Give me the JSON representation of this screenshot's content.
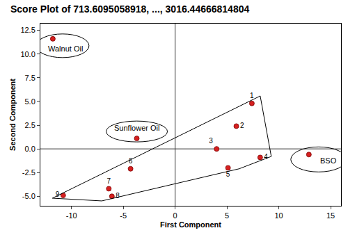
{
  "chart_data": {
    "type": "scatter",
    "title": "Score Plot of 713.6095058918, ..., 3016.44666814804",
    "x_label": "First Component",
    "y_label": "Second Component",
    "xlim": [
      -13,
      16
    ],
    "xticks": [
      -10,
      -5,
      0,
      5,
      10,
      15
    ],
    "ylim": [
      -6,
      13.2
    ],
    "yticks": [
      {
        "value": -5,
        "label": "-5.0"
      },
      -2.5,
      {
        "value": 0,
        "label": "0.0"
      },
      2.5,
      {
        "value": 5,
        "label": "5.0"
      },
      7.5,
      {
        "value": 10,
        "label": "10.0"
      },
      12.5
    ],
    "grid": false,
    "color": "#d62020",
    "marker": "circle",
    "ref_lines": [
      {
        "axis": "x",
        "value": 0
      },
      {
        "axis": "y",
        "value": 0
      }
    ],
    "samples": [
      {
        "label": "1",
        "x": 7.4,
        "y": 4.8
      },
      {
        "label": "2",
        "x": 5.9,
        "y": 2.4
      },
      {
        "label": "3",
        "x": 4.0,
        "y": 0.0
      },
      {
        "label": "4",
        "x": 8.2,
        "y": -0.9
      },
      {
        "label": "5",
        "x": 5.1,
        "y": -2.0
      },
      {
        "label": "6",
        "x": -4.3,
        "y": -2.1
      },
      {
        "label": "7",
        "x": -6.4,
        "y": -4.2
      },
      {
        "label": "8",
        "x": -6.1,
        "y": -5.0
      },
      {
        "label": "9",
        "x": -10.8,
        "y": -4.9
      }
    ],
    "groups": [
      {
        "label": "Walnut Oil",
        "x": -11.8,
        "y": 11.6
      },
      {
        "label": "Sunflower Oil",
        "x": -3.7,
        "y": 1.1
      },
      {
        "label": "BSO",
        "x": 12.9,
        "y": -0.6
      }
    ]
  }
}
